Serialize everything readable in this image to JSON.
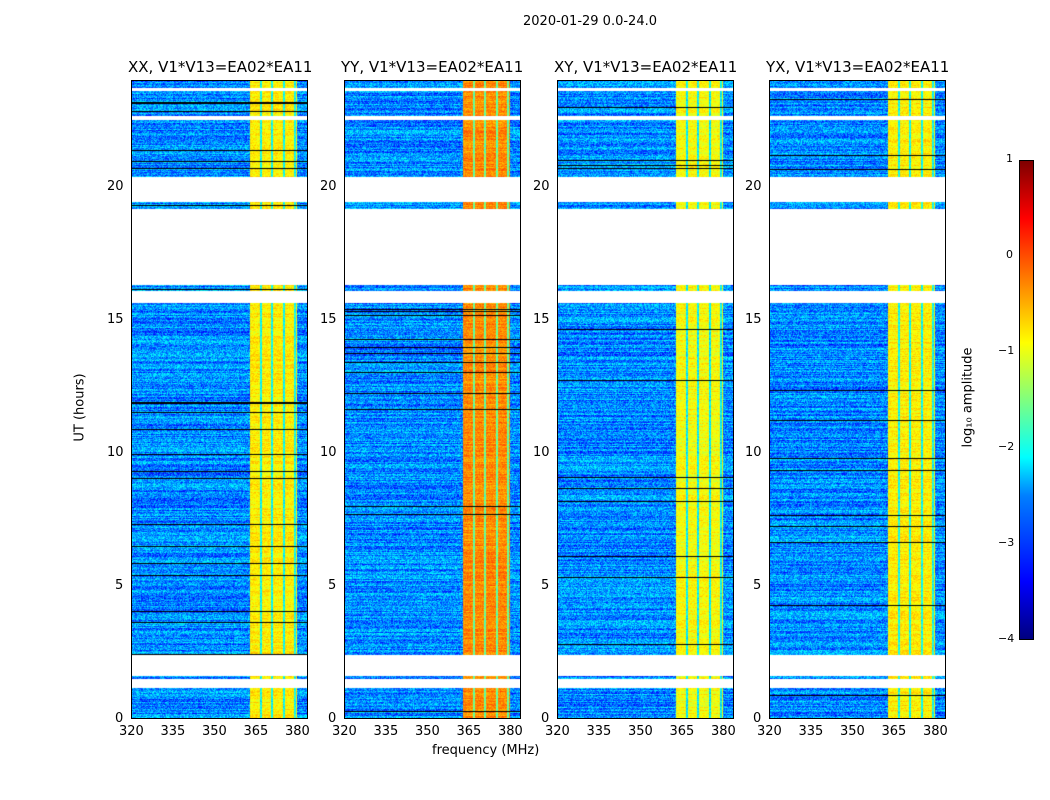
{
  "chart_data": {
    "type": "heatmap",
    "title": "2020-01-29 0.0-24.0",
    "xlabel": "frequency (MHz)",
    "ylabel": "UT (hours)",
    "xlim": [
      320,
      384
    ],
    "ylim": [
      0,
      24
    ],
    "xticks": [
      "320",
      "335",
      "350",
      "365",
      "380"
    ],
    "yticks": [
      "0",
      "5",
      "10",
      "15",
      "20"
    ],
    "panels": [
      {
        "title": "XX, V1*V13=EA02*EA11",
        "band_level": -0.8
      },
      {
        "title": "YY, V1*V13=EA02*EA11",
        "band_level": -0.3
      },
      {
        "title": "XY, V1*V13=EA02*EA11",
        "band_level": -0.9
      },
      {
        "title": "YX, V1*V13=EA02*EA11",
        "band_level": -0.8
      }
    ],
    "bright_band_mhz": [
      363,
      380
    ],
    "background_level": -2.7,
    "flagged_intervals_hours": [
      [
        23.65,
        23.75
      ],
      [
        22.55,
        22.7
      ],
      [
        19.45,
        20.4
      ],
      [
        16.35,
        19.2
      ],
      [
        15.65,
        16.1
      ],
      [
        1.6,
        2.4
      ],
      [
        1.15,
        1.5
      ]
    ],
    "colorbar": {
      "label": "log₁₀ amplitude",
      "ticks": [
        "1",
        "0",
        "−1",
        "−2",
        "−3",
        "−4"
      ],
      "range": [
        -4,
        1
      ],
      "cmap": "jet"
    }
  }
}
